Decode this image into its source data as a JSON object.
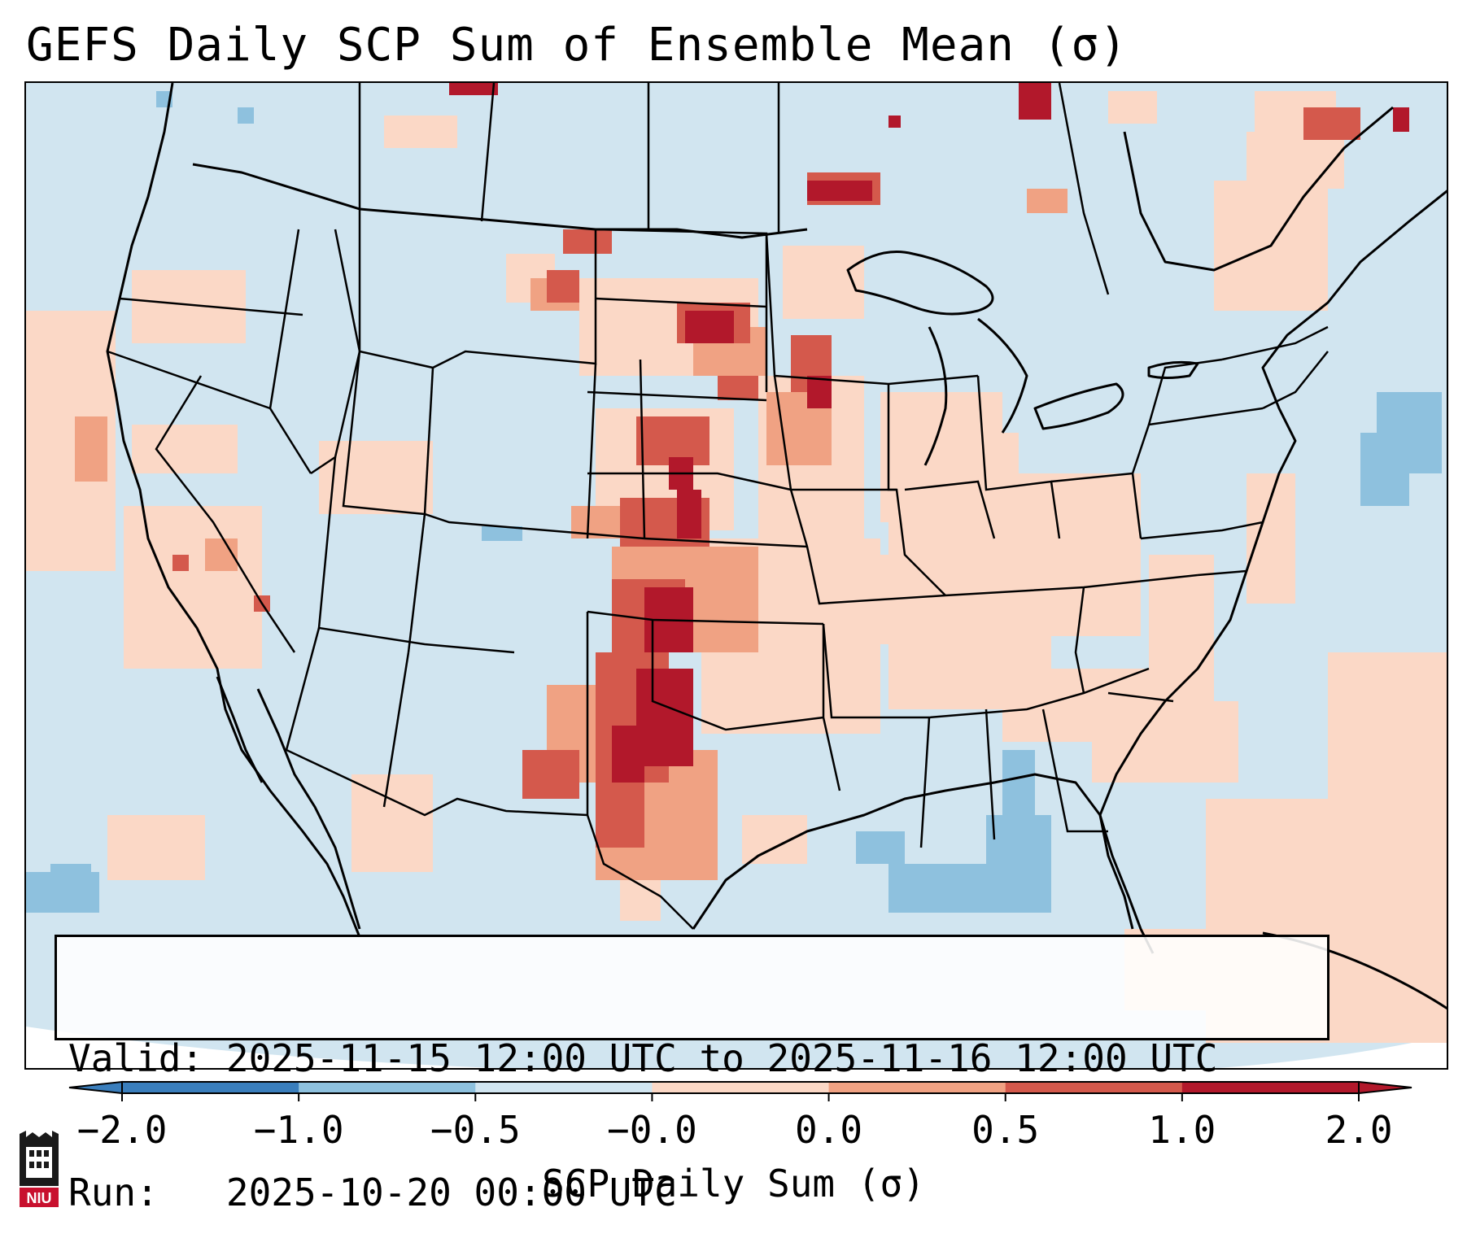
{
  "title": "GEFS Daily SCP Sum of Ensemble Mean (σ)",
  "info": {
    "valid_label": "Valid:",
    "valid_value": "2025-11-15 12:00 UTC to 2025-11-16 12:00 UTC",
    "run_label": "Run:",
    "run_value": "2025-10-20 00:00 UTC"
  },
  "colorbar": {
    "label": "SCP Daily Sum (σ)",
    "ticks": [
      "−2.0",
      "−1.0",
      "−0.5",
      "−0.0",
      "0.0",
      "0.5",
      "1.0",
      "2.0"
    ],
    "colors": [
      "#3a7ebc",
      "#8ec1de",
      "#d1e5f0",
      "#f7f7f7",
      "#fbd8c6",
      "#f0a283",
      "#d4594c",
      "#b2182b"
    ],
    "extend": "both"
  },
  "map": {
    "projection": "Lambert conformal (CONUS)",
    "background_color": "#d1e5f0",
    "features": [
      "coastlines",
      "country borders",
      "state borders"
    ],
    "field": "SCP daily sum anomaly (σ)"
  },
  "logo": {
    "text": "NIU",
    "icon": "niu-castle-logo",
    "color": "#c8102e"
  }
}
